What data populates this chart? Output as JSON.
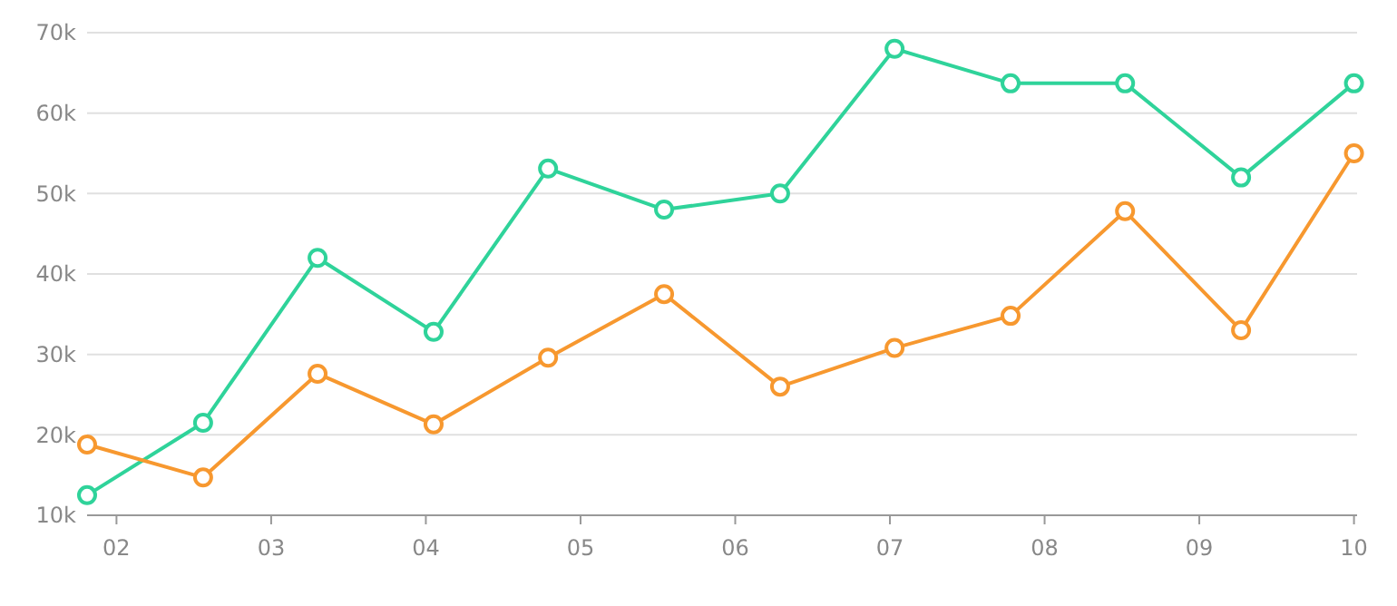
{
  "chart_data": {
    "type": "line",
    "x": [
      1.81,
      2.56,
      3.3,
      4.05,
      4.79,
      5.54,
      6.29,
      7.03,
      7.78,
      8.52,
      9.27,
      10.0
    ],
    "series": [
      {
        "color": "#2fd39a",
        "values": [
          12500,
          21500,
          42000,
          32800,
          53100,
          48000,
          50000,
          68000,
          63700,
          63700,
          52000,
          63700
        ]
      },
      {
        "color": "#f7982f",
        "values": [
          18800,
          14700,
          27600,
          21300,
          29600,
          37500,
          26000,
          30800,
          34800,
          47800,
          33000,
          55000
        ]
      }
    ],
    "xlim": [
      1.81,
      10.02
    ],
    "xticks": [
      {
        "value": 2,
        "label": "02"
      },
      {
        "value": 3,
        "label": "03"
      },
      {
        "value": 4,
        "label": "04"
      },
      {
        "value": 5,
        "label": "05"
      },
      {
        "value": 6,
        "label": "06"
      },
      {
        "value": 7,
        "label": "07"
      },
      {
        "value": 8,
        "label": "08"
      },
      {
        "value": 9,
        "label": "09"
      },
      {
        "value": 10,
        "label": "10"
      }
    ],
    "ylim": [
      10000,
      70000
    ],
    "yticks": [
      {
        "value": 10000,
        "label": "10k"
      },
      {
        "value": 20000,
        "label": "20k"
      },
      {
        "value": 30000,
        "label": "30k"
      },
      {
        "value": 40000,
        "label": "40k"
      },
      {
        "value": 50000,
        "label": "50k"
      },
      {
        "value": 60000,
        "label": "60k"
      },
      {
        "value": 70000,
        "label": "70k"
      }
    ],
    "grid": "y",
    "marker": "circle",
    "line_style": "solid"
  }
}
